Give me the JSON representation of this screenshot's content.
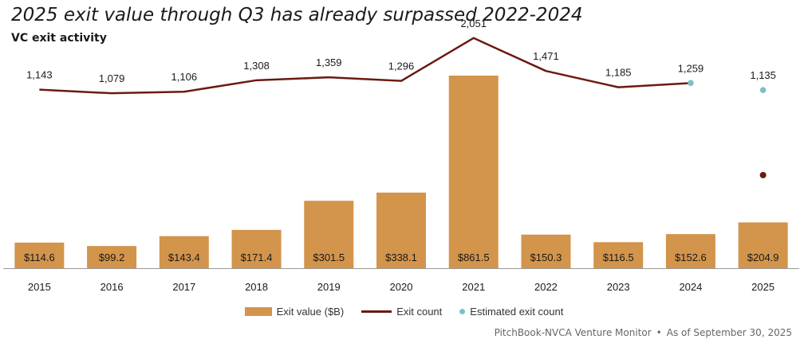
{
  "colors": {
    "bar": "#D3944B",
    "line": "#6B1A12",
    "estimate": "#7DBFC9",
    "axis": "#9a9a9a"
  },
  "chart_data": {
    "type": "bar",
    "title": "2025 exit value through Q3 has already surpassed 2022-2024",
    "subtitle": "VC exit activity",
    "categories": [
      "2015",
      "2016",
      "2017",
      "2018",
      "2019",
      "2020",
      "2021",
      "2022",
      "2023",
      "2024",
      "2025"
    ],
    "series": [
      {
        "name": "Exit value ($B)",
        "type": "bar",
        "values": [
          114.6,
          99.2,
          143.4,
          171.4,
          301.5,
          338.1,
          861.5,
          150.3,
          116.5,
          152.6,
          204.9
        ],
        "labels": [
          "$114.6",
          "$99.2",
          "$143.4",
          "$171.4",
          "$301.5",
          "$338.1",
          "$861.5",
          "$150.3",
          "$116.5",
          "$152.6",
          "$204.9"
        ]
      },
      {
        "name": "Exit count",
        "type": "line",
        "values": [
          1143,
          1079,
          1106,
          1308,
          1359,
          1296,
          2051,
          1471,
          1185,
          1259,
          null
        ],
        "labels": [
          "1,143",
          "1,079",
          "1,106",
          "1,308",
          "1,359",
          "1,296",
          "2,051",
          "1,471",
          "1,185",
          "1,259",
          ""
        ]
      },
      {
        "name": "Estimated exit count",
        "type": "scatter",
        "points": [
          {
            "category": "2024",
            "value": 1259
          },
          {
            "category": "2025",
            "value": 1135,
            "label": "1,135"
          }
        ]
      }
    ],
    "bar_ylim": [
      0,
      1000
    ],
    "line_ylim": [
      -2000,
      2300
    ],
    "grid": false,
    "legend_position": "bottom"
  },
  "legend": [
    {
      "label": "Exit value ($B)",
      "icon": "bar-swatch"
    },
    {
      "label": "Exit count",
      "icon": "line-swatch"
    },
    {
      "label": "Estimated exit count",
      "icon": "dot-swatch"
    }
  ],
  "source": {
    "name": "PitchBook-NVCA Venture Monitor",
    "separator": "•",
    "date": "As of September 30, 2025"
  }
}
